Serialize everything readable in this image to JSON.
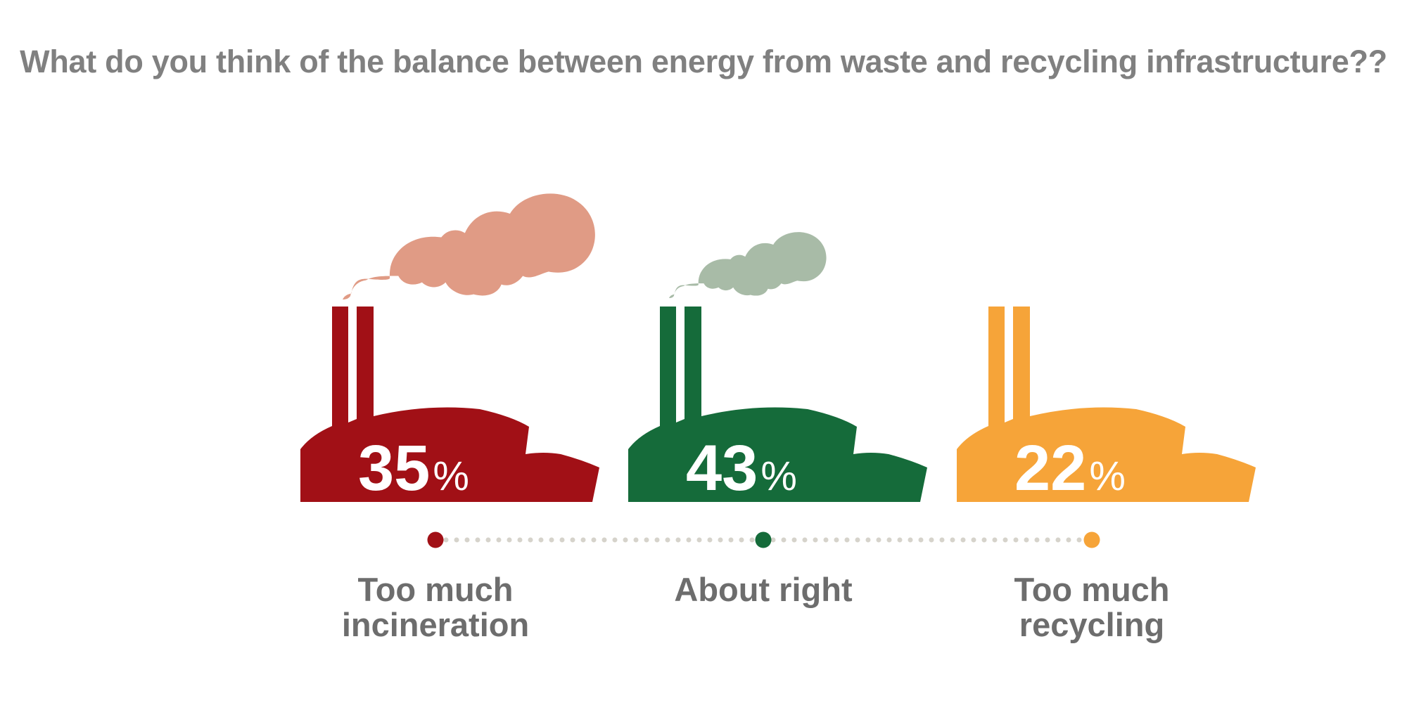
{
  "chart_data": {
    "type": "bar",
    "title": "What do you think of the balance between energy from waste and recycling infrastructure??",
    "categories": [
      {
        "lines": [
          "Too much",
          "incineration"
        ]
      },
      {
        "lines": [
          "About right"
        ]
      },
      {
        "lines": [
          "Too much",
          "recycling"
        ]
      }
    ],
    "values": [
      35,
      43,
      22
    ],
    "unit": "%",
    "colors": [
      "#a11016",
      "#156b3a",
      "#f6a439"
    ],
    "smoke_colors": [
      "#e09b85",
      "#a8bba7",
      null
    ],
    "dot_line_color": "#d6d3cb"
  }
}
